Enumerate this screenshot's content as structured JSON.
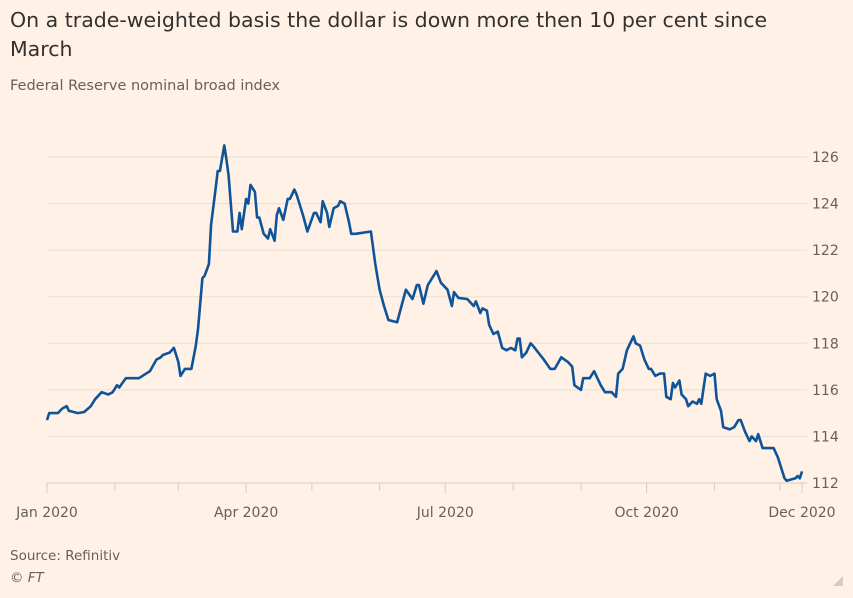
{
  "chart_data": {
    "type": "line",
    "title": "On a trade-weighted basis the dollar is down more then 10 per cent since March",
    "subtitle": "Federal Reserve nominal broad index",
    "source": "Source: Refinitiv",
    "copyright": "© FT",
    "ylim": [
      112,
      126
    ],
    "yticks": [
      112,
      114,
      116,
      118,
      120,
      122,
      124,
      126
    ],
    "y_axis_side": "right",
    "grid": true,
    "xlim": [
      "2020-01-01",
      "2020-12-11"
    ],
    "xticks": [
      {
        "date": "2020-01-01",
        "label": "Jan 2020"
      },
      {
        "date": "2020-04-01",
        "label": "Apr 2020"
      },
      {
        "date": "2020-07-01",
        "label": "Jul 2020"
      },
      {
        "date": "2020-10-01",
        "label": "Oct 2020"
      },
      {
        "date": "2020-12-11",
        "label": "Dec 2020"
      }
    ],
    "minor_xticks": [
      "2020-02-01",
      "2020-03-01",
      "2020-05-01",
      "2020-06-01",
      "2020-08-01",
      "2020-09-01",
      "2020-11-01",
      "2020-12-01"
    ],
    "colors": {
      "line": "#0f5499",
      "background": "#fff1e5",
      "grid": "#eadfd2",
      "text": "#66605c",
      "title": "#33302e"
    },
    "series": [
      {
        "points": [
          [
            "2020-01-01",
            114.7
          ],
          [
            "2020-01-02",
            115.0
          ],
          [
            "2020-01-06",
            115.0
          ],
          [
            "2020-01-08",
            115.2
          ],
          [
            "2020-01-10",
            115.3
          ],
          [
            "2020-01-11",
            115.1
          ],
          [
            "2020-01-15",
            115.0
          ],
          [
            "2020-01-18",
            115.05
          ],
          [
            "2020-01-21",
            115.3
          ],
          [
            "2020-01-23",
            115.6
          ],
          [
            "2020-01-26",
            115.9
          ],
          [
            "2020-01-29",
            115.8
          ],
          [
            "2020-01-31",
            115.9
          ],
          [
            "2020-02-02",
            116.2
          ],
          [
            "2020-02-03",
            116.1
          ],
          [
            "2020-02-06",
            116.5
          ],
          [
            "2020-02-09",
            116.5
          ],
          [
            "2020-02-12",
            116.5
          ],
          [
            "2020-02-17",
            116.8
          ],
          [
            "2020-02-20",
            117.3
          ],
          [
            "2020-02-22",
            117.4
          ],
          [
            "2020-02-23",
            117.5
          ],
          [
            "2020-02-26",
            117.6
          ],
          [
            "2020-02-28",
            117.8
          ],
          [
            "2020-03-01",
            117.2
          ],
          [
            "2020-03-02",
            116.6
          ],
          [
            "2020-03-04",
            116.9
          ],
          [
            "2020-03-07",
            116.9
          ],
          [
            "2020-03-09",
            117.9
          ],
          [
            "2020-03-10",
            118.6
          ],
          [
            "2020-03-12",
            120.8
          ],
          [
            "2020-03-13",
            120.9
          ],
          [
            "2020-03-15",
            121.4
          ],
          [
            "2020-03-16",
            123.1
          ],
          [
            "2020-03-18",
            124.6
          ],
          [
            "2020-03-19",
            125.4
          ],
          [
            "2020-03-20",
            125.4
          ],
          [
            "2020-03-22",
            126.5
          ],
          [
            "2020-03-23",
            125.9
          ],
          [
            "2020-03-24",
            125.2
          ],
          [
            "2020-03-26",
            122.8
          ],
          [
            "2020-03-28",
            122.8
          ],
          [
            "2020-03-29",
            123.6
          ],
          [
            "2020-03-30",
            122.9
          ],
          [
            "2020-04-01",
            124.2
          ],
          [
            "2020-04-02",
            124.0
          ],
          [
            "2020-04-03",
            124.8
          ],
          [
            "2020-04-05",
            124.5
          ],
          [
            "2020-04-06",
            123.4
          ],
          [
            "2020-04-07",
            123.4
          ],
          [
            "2020-04-09",
            122.7
          ],
          [
            "2020-04-11",
            122.5
          ],
          [
            "2020-04-12",
            122.9
          ],
          [
            "2020-04-14",
            122.4
          ],
          [
            "2020-04-15",
            123.5
          ],
          [
            "2020-04-16",
            123.8
          ],
          [
            "2020-04-18",
            123.3
          ],
          [
            "2020-04-20",
            124.2
          ],
          [
            "2020-04-21",
            124.2
          ],
          [
            "2020-04-23",
            124.6
          ],
          [
            "2020-04-24",
            124.4
          ],
          [
            "2020-04-27",
            123.5
          ],
          [
            "2020-04-29",
            122.8
          ],
          [
            "2020-05-02",
            123.6
          ],
          [
            "2020-05-03",
            123.6
          ],
          [
            "2020-05-05",
            123.2
          ],
          [
            "2020-05-06",
            124.1
          ],
          [
            "2020-05-08",
            123.6
          ],
          [
            "2020-05-09",
            123.0
          ],
          [
            "2020-05-11",
            123.8
          ],
          [
            "2020-05-13",
            123.9
          ],
          [
            "2020-05-14",
            124.1
          ],
          [
            "2020-05-16",
            124.0
          ],
          [
            "2020-05-18",
            123.2
          ],
          [
            "2020-05-19",
            122.7
          ],
          [
            "2020-05-21",
            122.7
          ],
          [
            "2020-05-28",
            122.8
          ],
          [
            "2020-05-30",
            121.4
          ],
          [
            "2020-06-01",
            120.3
          ],
          [
            "2020-06-03",
            119.6
          ],
          [
            "2020-06-05",
            119.0
          ],
          [
            "2020-06-09",
            118.9
          ],
          [
            "2020-06-11",
            119.6
          ],
          [
            "2020-06-13",
            120.3
          ],
          [
            "2020-06-16",
            119.9
          ],
          [
            "2020-06-18",
            120.5
          ],
          [
            "2020-06-19",
            120.5
          ],
          [
            "2020-06-21",
            119.7
          ],
          [
            "2020-06-23",
            120.5
          ],
          [
            "2020-06-27",
            121.1
          ],
          [
            "2020-06-29",
            120.6
          ],
          [
            "2020-07-02",
            120.3
          ],
          [
            "2020-07-04",
            119.6
          ],
          [
            "2020-07-05",
            120.2
          ],
          [
            "2020-07-07",
            119.95
          ],
          [
            "2020-07-11",
            119.9
          ],
          [
            "2020-07-14",
            119.6
          ],
          [
            "2020-07-15",
            119.8
          ],
          [
            "2020-07-17",
            119.3
          ],
          [
            "2020-07-18",
            119.5
          ],
          [
            "2020-07-20",
            119.4
          ],
          [
            "2020-07-21",
            118.8
          ],
          [
            "2020-07-23",
            118.4
          ],
          [
            "2020-07-25",
            118.5
          ],
          [
            "2020-07-27",
            117.8
          ],
          [
            "2020-07-29",
            117.7
          ],
          [
            "2020-07-31",
            117.8
          ],
          [
            "2020-08-02",
            117.7
          ],
          [
            "2020-08-03",
            118.2
          ],
          [
            "2020-08-04",
            118.2
          ],
          [
            "2020-08-05",
            117.4
          ],
          [
            "2020-08-07",
            117.6
          ],
          [
            "2020-08-09",
            118.0
          ],
          [
            "2020-08-10",
            117.9
          ],
          [
            "2020-08-15",
            117.3
          ],
          [
            "2020-08-18",
            116.9
          ],
          [
            "2020-08-20",
            116.9
          ],
          [
            "2020-08-23",
            117.4
          ],
          [
            "2020-08-26",
            117.2
          ],
          [
            "2020-08-28",
            117.0
          ],
          [
            "2020-08-29",
            116.2
          ],
          [
            "2020-09-01",
            116.0
          ],
          [
            "2020-09-02",
            116.5
          ],
          [
            "2020-09-05",
            116.5
          ],
          [
            "2020-09-07",
            116.8
          ],
          [
            "2020-09-09",
            116.4
          ],
          [
            "2020-09-10",
            116.2
          ],
          [
            "2020-09-12",
            115.9
          ],
          [
            "2020-09-15",
            115.9
          ],
          [
            "2020-09-17",
            115.7
          ],
          [
            "2020-09-18",
            116.7
          ],
          [
            "2020-09-20",
            116.9
          ],
          [
            "2020-09-22",
            117.7
          ],
          [
            "2020-09-25",
            118.3
          ],
          [
            "2020-09-26",
            118.0
          ],
          [
            "2020-09-28",
            117.9
          ],
          [
            "2020-09-30",
            117.3
          ],
          [
            "2020-10-02",
            116.9
          ],
          [
            "2020-10-03",
            116.9
          ],
          [
            "2020-10-05",
            116.6
          ],
          [
            "2020-10-07",
            116.7
          ],
          [
            "2020-10-09",
            116.7
          ],
          [
            "2020-10-10",
            115.7
          ],
          [
            "2020-10-12",
            115.6
          ],
          [
            "2020-10-13",
            116.3
          ],
          [
            "2020-10-14",
            116.1
          ],
          [
            "2020-10-16",
            116.4
          ],
          [
            "2020-10-17",
            115.8
          ],
          [
            "2020-10-19",
            115.6
          ],
          [
            "2020-10-20",
            115.3
          ],
          [
            "2020-10-22",
            115.5
          ],
          [
            "2020-10-24",
            115.4
          ],
          [
            "2020-10-25",
            115.6
          ],
          [
            "2020-10-26",
            115.4
          ],
          [
            "2020-10-28",
            116.7
          ],
          [
            "2020-10-30",
            116.6
          ],
          [
            "2020-11-01",
            116.7
          ],
          [
            "2020-11-02",
            115.6
          ],
          [
            "2020-11-04",
            115.1
          ],
          [
            "2020-11-05",
            114.4
          ],
          [
            "2020-11-08",
            114.3
          ],
          [
            "2020-11-10",
            114.4
          ],
          [
            "2020-11-12",
            114.7
          ],
          [
            "2020-11-13",
            114.7
          ],
          [
            "2020-11-15",
            114.2
          ],
          [
            "2020-11-17",
            113.8
          ],
          [
            "2020-11-18",
            114.0
          ],
          [
            "2020-11-20",
            113.8
          ],
          [
            "2020-11-21",
            114.1
          ],
          [
            "2020-11-23",
            113.5
          ],
          [
            "2020-11-28",
            113.5
          ],
          [
            "2020-11-30",
            113.1
          ],
          [
            "2020-12-01",
            112.8
          ],
          [
            "2020-12-03",
            112.2
          ],
          [
            "2020-12-04",
            112.1
          ],
          [
            "2020-12-08",
            112.2
          ],
          [
            "2020-12-09",
            112.3
          ],
          [
            "2020-12-10",
            112.2
          ],
          [
            "2020-12-11",
            112.5
          ]
        ]
      }
    ]
  },
  "ui": {
    "resize_icon": "resize-handle-icon"
  }
}
